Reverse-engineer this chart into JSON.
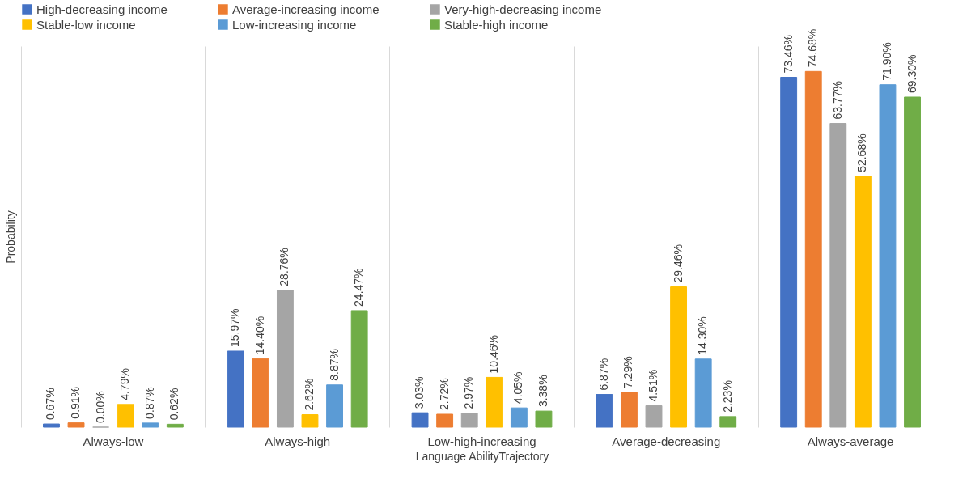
{
  "chart_data": {
    "type": "bar",
    "xlabel": "Language AbilityTrajectory",
    "ylabel": "Probability",
    "categories": [
      "Always-low",
      "Always-high",
      "Low-high-increasing",
      "Average-decreasing",
      "Always-average"
    ],
    "series": [
      {
        "name": "High-decreasing income",
        "color": "#4472c4",
        "values": [
          0.67,
          15.97,
          3.03,
          6.87,
          73.46
        ],
        "value_labels": [
          "0.67%",
          "15.97%",
          "3.03%",
          "6.87%",
          "73.46%"
        ]
      },
      {
        "name": "Average-increasing income",
        "color": "#ed7d31",
        "values": [
          0.91,
          14.4,
          2.72,
          7.29,
          74.68
        ],
        "value_labels": [
          "0.91%",
          "14.40%",
          "2.72%",
          "7.29%",
          "74.68%"
        ]
      },
      {
        "name": "Very-high-decreasing income",
        "color": "#a5a5a5",
        "values": [
          0.0,
          28.76,
          2.97,
          4.51,
          63.77
        ],
        "value_labels": [
          "0.00%",
          "28.76%",
          "2.97%",
          "4.51%",
          "63.77%"
        ]
      },
      {
        "name": "Stable-low income",
        "color": "#ffc000",
        "values": [
          4.79,
          2.62,
          10.46,
          29.46,
          52.68
        ],
        "value_labels": [
          "4.79%",
          "2.62%",
          "10.46%",
          "29.46%",
          "52.68%"
        ]
      },
      {
        "name": "Low-increasing income",
        "color": "#5b9bd5",
        "values": [
          0.87,
          8.87,
          4.05,
          14.3,
          71.9
        ],
        "value_labels": [
          "0.87%",
          "8.87%",
          "4.05%",
          "14.30%",
          "71.90%"
        ]
      },
      {
        "name": "Stable-high income",
        "color": "#70ad47",
        "values": [
          0.62,
          24.47,
          3.38,
          2.23,
          69.3
        ],
        "value_labels": [
          "0.62%",
          "24.47%",
          "3.38%",
          "2.23%",
          "69.30%"
        ]
      }
    ],
    "legend": "top",
    "grid": "x"
  }
}
